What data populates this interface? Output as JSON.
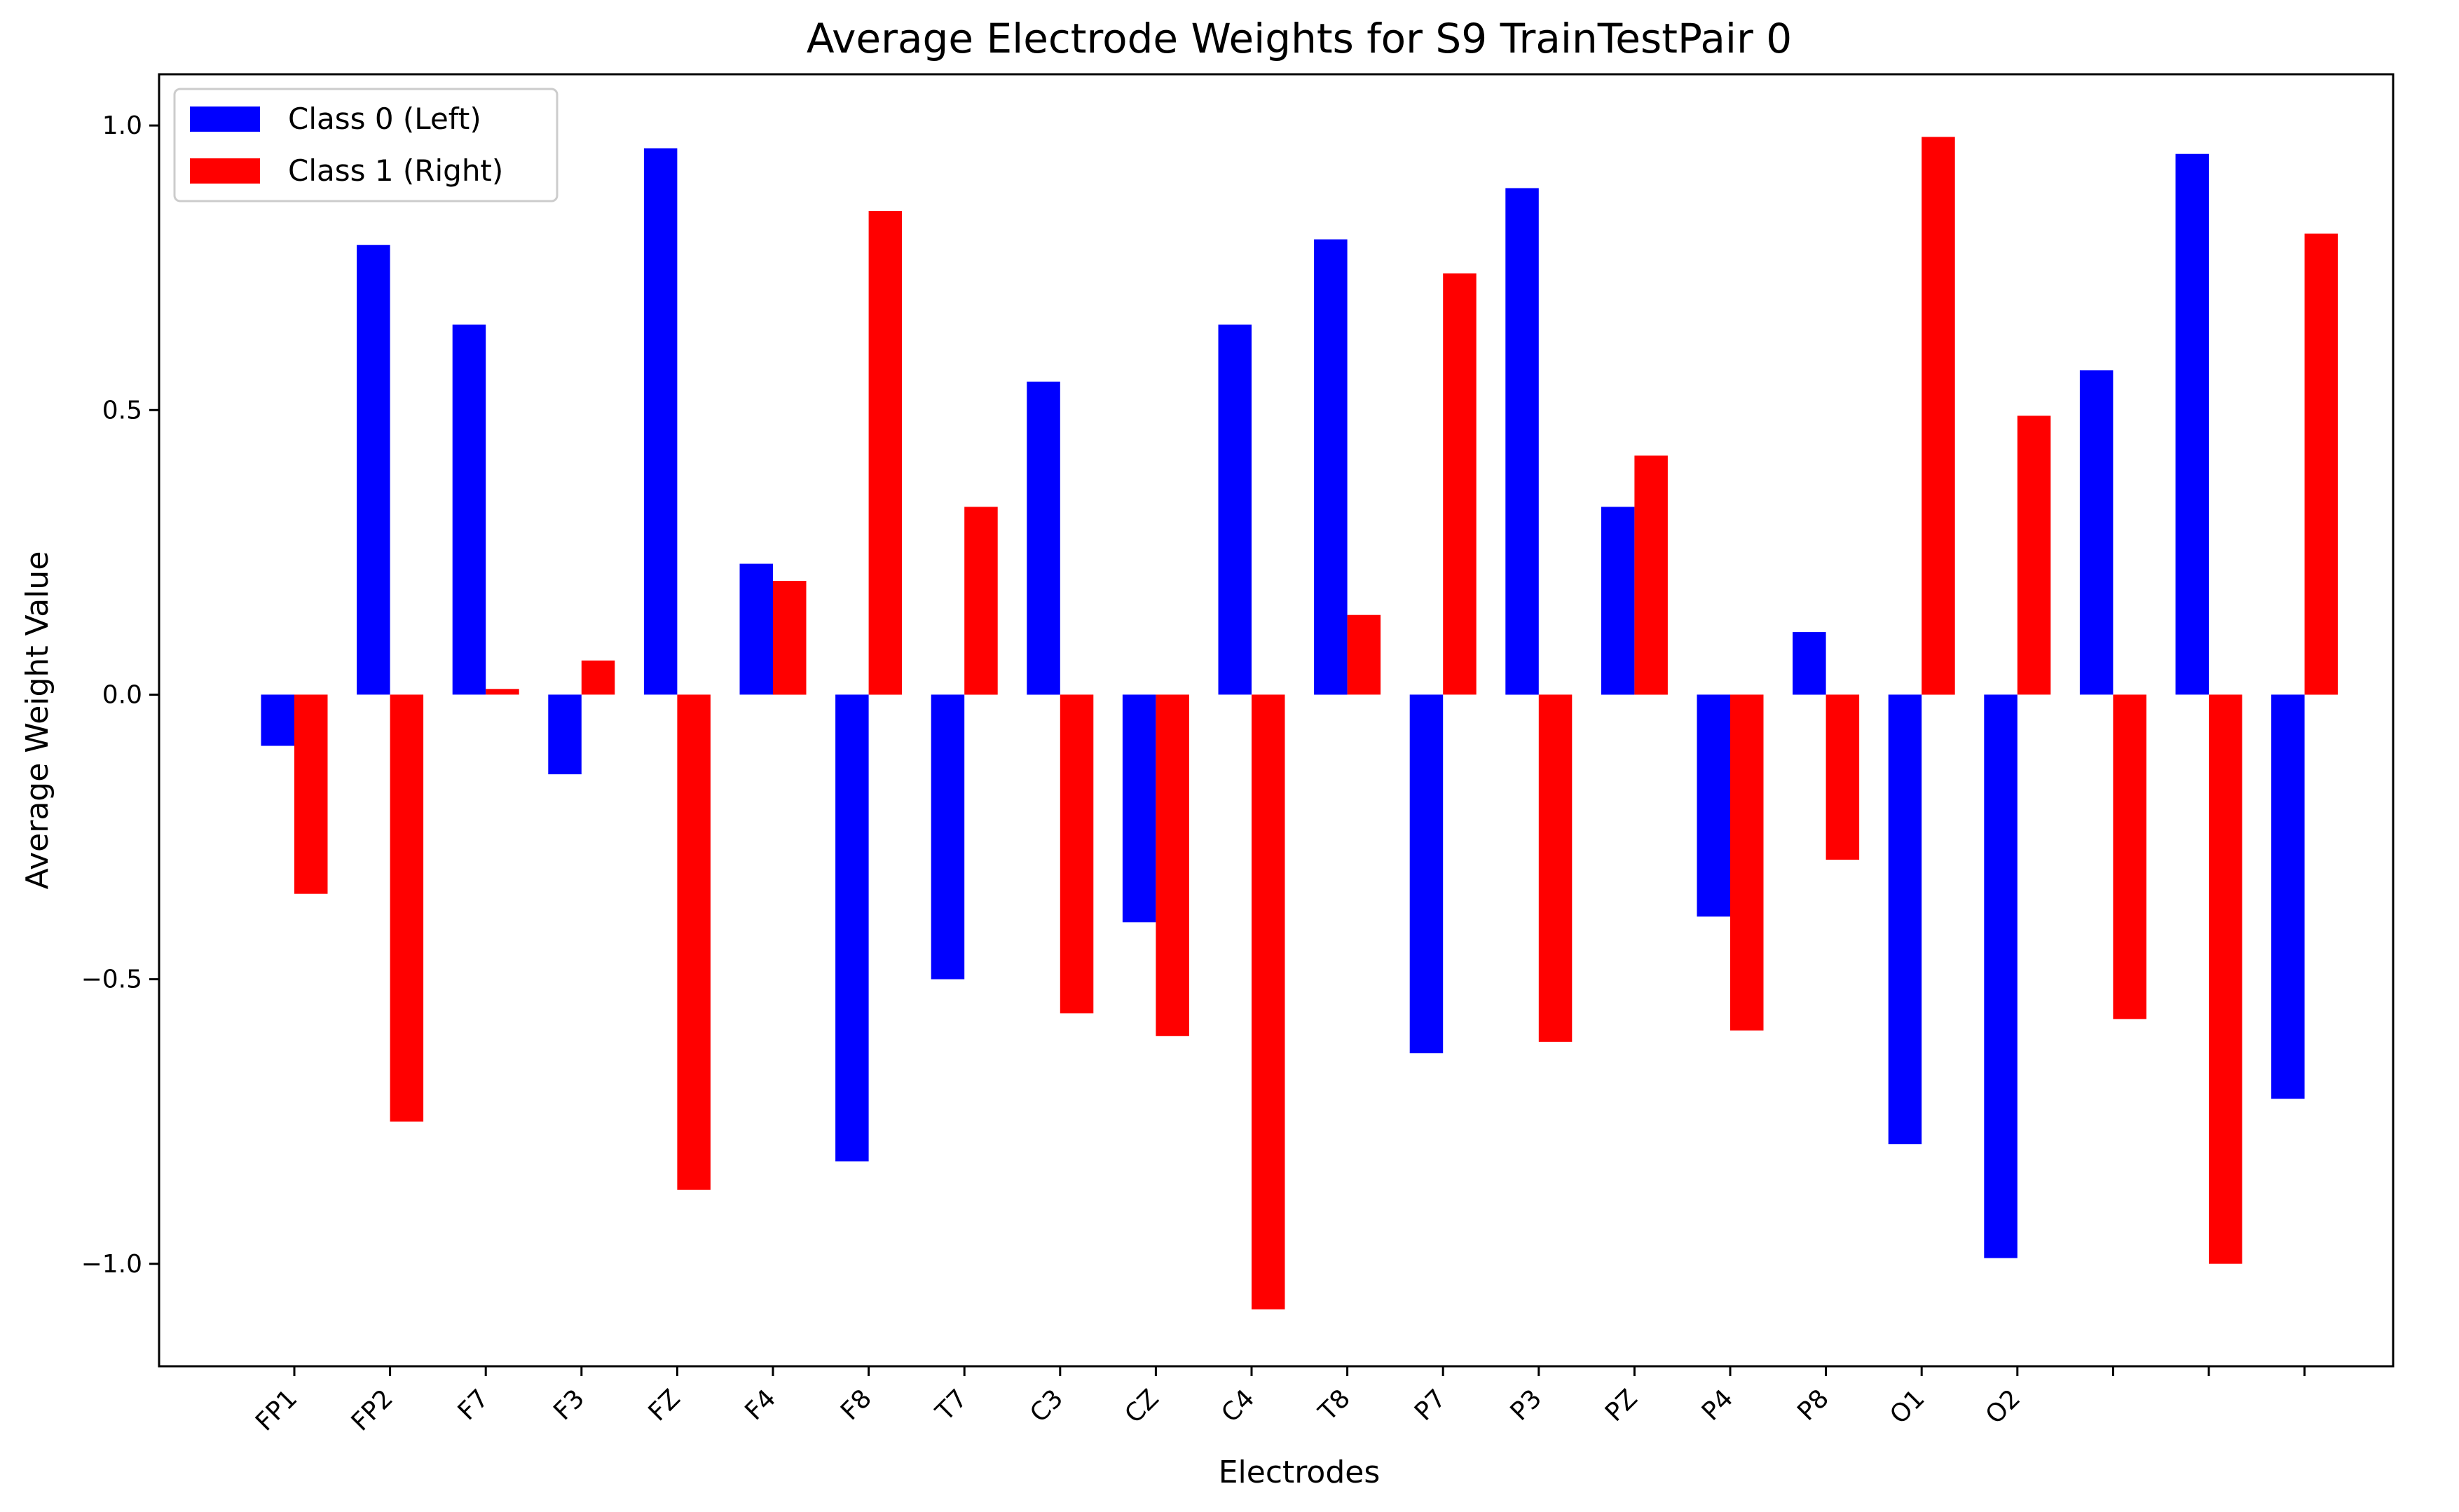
{
  "chart_data": {
    "type": "bar",
    "title": "Average Electrode Weights for S9 TrainTestPair 0",
    "xlabel": "Electrodes",
    "ylabel": "Average Weight Value",
    "ylim": [
      -1.18,
      1.09
    ],
    "yticks": [
      -1.0,
      -0.5,
      0.0,
      0.5,
      1.0
    ],
    "ytick_labels": [
      "−1.0",
      "−0.5",
      "0.0",
      "0.5",
      "1.0"
    ],
    "grid": false,
    "legend_position": "top-left",
    "categories": [
      "FP1",
      "FP2",
      "F7",
      "F3",
      "FZ",
      "F4",
      "F8",
      "T7",
      "C3",
      "CZ",
      "C4",
      "T8",
      "P7",
      "P3",
      "PZ",
      "P4",
      "P8",
      "O1",
      "O2",
      "",
      "",
      ""
    ],
    "series": [
      {
        "name": "Class 0 (Left)",
        "color": "#0000ff",
        "values": [
          -0.09,
          0.79,
          0.65,
          -0.14,
          0.96,
          0.23,
          -0.82,
          -0.5,
          0.55,
          -0.4,
          0.65,
          0.8,
          -0.63,
          0.89,
          0.33,
          -0.39,
          0.11,
          -0.79,
          -0.99,
          0.57,
          0.95,
          -0.71
        ]
      },
      {
        "name": "Class 1 (Right)",
        "color": "#ff0000",
        "values": [
          -0.35,
          -0.75,
          0.01,
          0.06,
          -0.87,
          0.2,
          0.85,
          0.33,
          -0.56,
          -0.6,
          -1.08,
          0.14,
          0.74,
          -0.61,
          0.42,
          -0.59,
          -0.29,
          0.98,
          0.49,
          -0.57,
          -1.0,
          0.81
        ]
      }
    ]
  }
}
